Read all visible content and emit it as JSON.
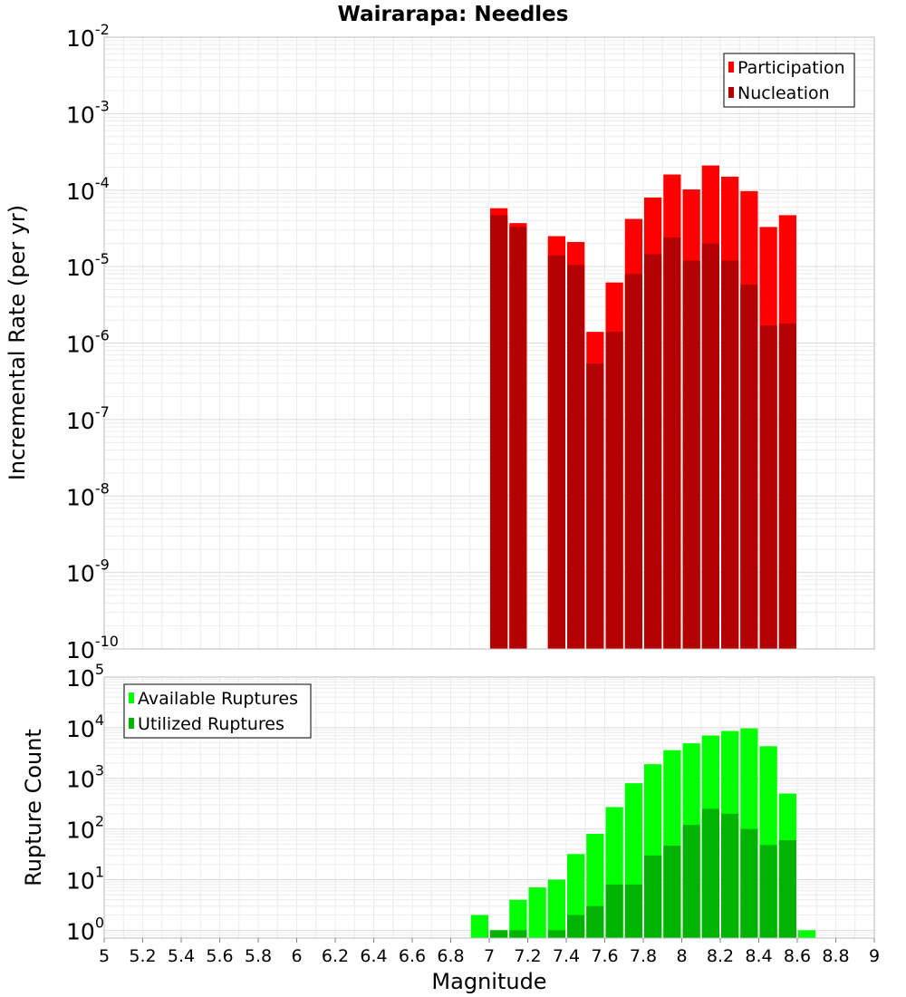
{
  "title": "Wairarapa: Needles",
  "chart_data": [
    {
      "type": "bar",
      "scale": "log",
      "ylabel": "Incremental Rate (per yr)",
      "ylim": [
        1e-10,
        0.01
      ],
      "xlim": [
        5,
        9
      ],
      "bin_width": 0.1,
      "grid": true,
      "legend_position": "top-right",
      "series": [
        {
          "name": "Participation",
          "color": "#ff0000",
          "points": [
            [
              7.05,
              5.8e-05
            ],
            [
              7.15,
              3.7e-05
            ],
            [
              7.35,
              2.5e-05
            ],
            [
              7.45,
              2.1e-05
            ],
            [
              7.55,
              1.4e-06
            ],
            [
              7.65,
              6.2e-06
            ],
            [
              7.75,
              4.2e-05
            ],
            [
              7.85,
              8e-05
            ],
            [
              7.95,
              0.00016
            ],
            [
              8.05,
              0.000102
            ],
            [
              8.15,
              0.00021
            ],
            [
              8.25,
              0.00015
            ],
            [
              8.35,
              9.7e-05
            ],
            [
              8.45,
              3.3e-05
            ],
            [
              8.55,
              4.7e-05
            ]
          ]
        },
        {
          "name": "Nucleation",
          "color": "#b30000",
          "points": [
            [
              7.05,
              4.7e-05
            ],
            [
              7.15,
              3.3e-05
            ],
            [
              7.35,
              1.4e-05
            ],
            [
              7.45,
              1.05e-05
            ],
            [
              7.55,
              5.4e-07
            ],
            [
              7.65,
              1.4e-06
            ],
            [
              7.75,
              8e-06
            ],
            [
              7.85,
              1.45e-05
            ],
            [
              7.95,
              2.4e-05
            ],
            [
              8.05,
              1.2e-05
            ],
            [
              8.15,
              2e-05
            ],
            [
              8.25,
              1.2e-05
            ],
            [
              8.35,
              5.8e-06
            ],
            [
              8.45,
              1.7e-06
            ],
            [
              8.55,
              1.8e-06
            ]
          ]
        }
      ]
    },
    {
      "type": "bar",
      "scale": "log",
      "xlabel": "Magnitude",
      "ylabel": "Rupture Count",
      "ylim": [
        0.7,
        100000
      ],
      "xlim": [
        5,
        9
      ],
      "bin_width": 0.1,
      "grid": true,
      "legend_position": "top-left",
      "series": [
        {
          "name": "Available Ruptures",
          "color": "#00ff00",
          "points": [
            [
              6.95,
              2
            ],
            [
              7.05,
              1
            ],
            [
              7.15,
              4
            ],
            [
              7.25,
              7
            ],
            [
              7.35,
              10
            ],
            [
              7.45,
              32
            ],
            [
              7.55,
              80
            ],
            [
              7.65,
              270
            ],
            [
              7.75,
              800
            ],
            [
              7.85,
              1900
            ],
            [
              7.95,
              3600
            ],
            [
              8.05,
              4900
            ],
            [
              8.15,
              7000
            ],
            [
              8.25,
              8600
            ],
            [
              8.35,
              9700
            ],
            [
              8.45,
              4300
            ],
            [
              8.55,
              500
            ],
            [
              8.65,
              1
            ]
          ]
        },
        {
          "name": "Utilized Ruptures",
          "color": "#00b300",
          "points": [
            [
              7.05,
              1
            ],
            [
              7.15,
              1
            ],
            [
              7.35,
              1
            ],
            [
              7.45,
              2
            ],
            [
              7.55,
              3
            ],
            [
              7.65,
              8
            ],
            [
              7.75,
              8
            ],
            [
              7.85,
              30
            ],
            [
              7.95,
              47
            ],
            [
              8.05,
              120
            ],
            [
              8.15,
              250
            ],
            [
              8.25,
              200
            ],
            [
              8.35,
              100
            ],
            [
              8.45,
              48
            ],
            [
              8.55,
              60
            ]
          ]
        }
      ]
    }
  ],
  "x_ticks": [
    "5",
    "5.2",
    "5.4",
    "5.6",
    "5.8",
    "6",
    "6.2",
    "6.4",
    "6.6",
    "6.8",
    "7",
    "7.2",
    "7.4",
    "7.6",
    "7.8",
    "8",
    "8.2",
    "8.4",
    "8.6",
    "8.8",
    "9"
  ],
  "top_y_exponents": [
    "-2",
    "-3",
    "-4",
    "-5",
    "-6",
    "-7",
    "-8",
    "-9",
    "-10"
  ],
  "bottom_y_exponents": [
    "5",
    "4",
    "3",
    "2",
    "1",
    "0"
  ]
}
